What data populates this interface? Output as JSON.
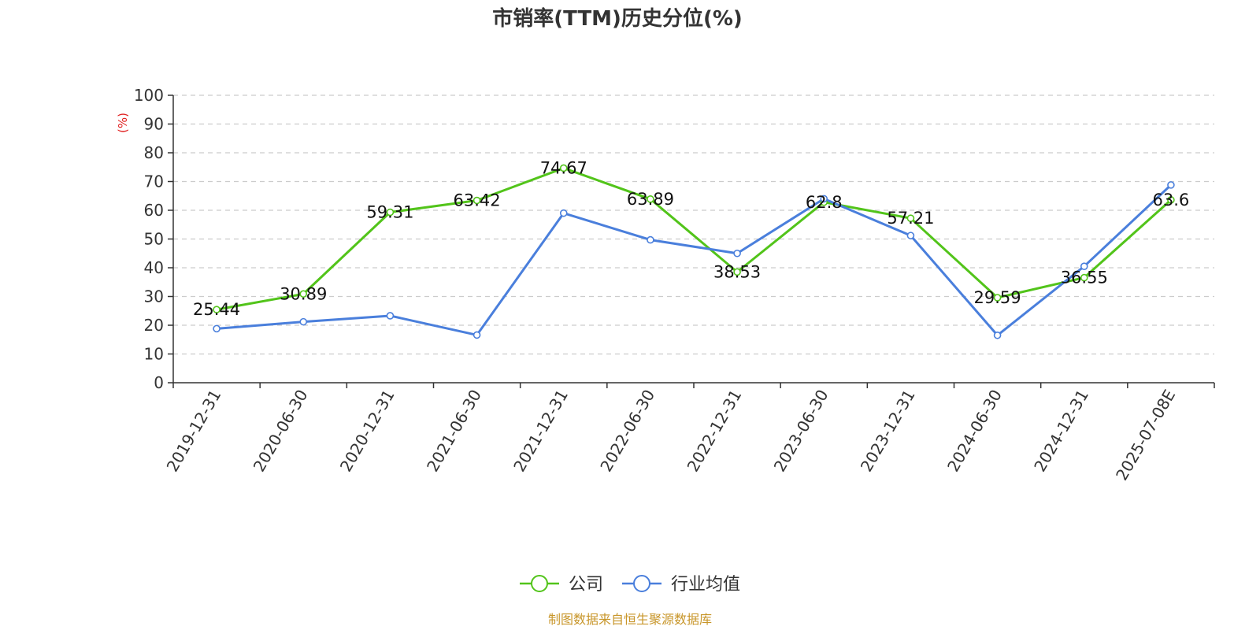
{
  "chart_data": {
    "type": "line",
    "title": "市销率(TTM)历史分位(%)",
    "ylabel": "(%)",
    "ylim": [
      0,
      100
    ],
    "yticks": [
      0,
      10,
      20,
      30,
      40,
      50,
      60,
      70,
      80,
      90,
      100
    ],
    "grid": true,
    "legend_position": "bottom-center",
    "categories": [
      "2019-12-31",
      "2020-06-30",
      "2020-12-31",
      "2021-06-30",
      "2021-12-31",
      "2022-06-30",
      "2022-12-31",
      "2023-06-30",
      "2023-12-31",
      "2024-06-30",
      "2024-12-31",
      "2025-07-08E"
    ],
    "series": [
      {
        "name": "公司",
        "color": "#52c41a",
        "values": [
          25.44,
          30.89,
          59.31,
          63.42,
          74.67,
          63.89,
          38.53,
          62.8,
          57.21,
          29.59,
          36.55,
          63.6
        ],
        "labels": [
          "25.44",
          "30.89",
          "59.31",
          "63.42",
          "74.67",
          "63.89",
          "38.53",
          "62.8",
          "57.21",
          "29.59",
          "36.55",
          "63.6"
        ]
      },
      {
        "name": "行业均值",
        "color": "#4a7fdc",
        "values": [
          18.8,
          21.2,
          23.3,
          16.6,
          59.0,
          49.7,
          45.0,
          64.0,
          51.2,
          16.5,
          40.5,
          68.8
        ]
      }
    ],
    "source": "制图数据来自恒生聚源数据库",
    "colors": {
      "ylabel": "#e02020",
      "source": "#c8962a",
      "grid": "#cccccc",
      "axis": "#333333"
    }
  }
}
